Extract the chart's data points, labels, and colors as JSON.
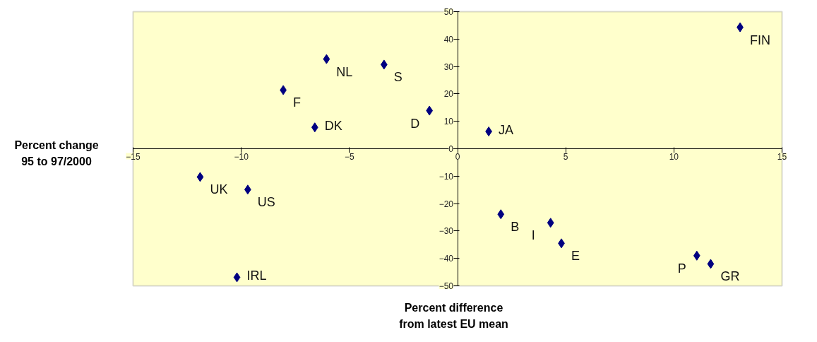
{
  "chart_data": {
    "type": "scatter",
    "xlabel": "Percent difference\nfrom latest EU mean",
    "ylabel": "Percent change\n95 to 97/2000",
    "x": [
      13.06,
      -6.06,
      -3.4,
      -8.06,
      -1.3,
      -6.6,
      1.44,
      -11.9,
      -9.7,
      -10.2,
      2.0,
      4.3,
      4.8,
      11.06,
      11.7
    ],
    "series": [
      {
        "color": "#000080",
        "values": [
          44.3,
          32.7,
          30.7,
          21.4,
          13.9,
          7.8,
          6.3,
          -10.3,
          -14.9,
          -46.9,
          -23.9,
          -27,
          -34.5,
          -39,
          -42
        ]
      }
    ],
    "annotations": [
      {
        "text": "FIN",
        "x": 13.06,
        "y": 44.3
      },
      {
        "text": "NL",
        "x": -6.06,
        "y": 32.7
      },
      {
        "text": "S",
        "x": -3.4,
        "y": 30.7
      },
      {
        "text": "F",
        "x": -8.06,
        "y": 21.4
      },
      {
        "text": "D",
        "x": -1.3,
        "y": 13.9
      },
      {
        "text": "DK",
        "x": -6.6,
        "y": 7.8
      },
      {
        "text": "JA",
        "x": 1.44,
        "y": 6.3
      },
      {
        "text": "UK",
        "x": -11.9,
        "y": -10.3
      },
      {
        "text": "US",
        "x": -9.7,
        "y": -14.9
      },
      {
        "text": "IRL",
        "x": -10.2,
        "y": -46.9
      },
      {
        "text": "B",
        "x": 2.0,
        "y": -23.9
      },
      {
        "text": "I",
        "x": 4.3,
        "y": -27
      },
      {
        "text": "E",
        "x": 4.8,
        "y": -34.5
      },
      {
        "text": "P",
        "x": 11.06,
        "y": -39
      },
      {
        "text": "GR",
        "x": 11.7,
        "y": -42
      }
    ],
    "xlim": [
      -15,
      15
    ],
    "xticks": [
      -15,
      -10,
      -5,
      0,
      5,
      10,
      15
    ],
    "ylim": [
      -50,
      50
    ],
    "yticks": [
      -50,
      -40,
      -30,
      -20,
      -10,
      0,
      10,
      20,
      30,
      40,
      50
    ],
    "marker": "diamond",
    "grid": false
  }
}
